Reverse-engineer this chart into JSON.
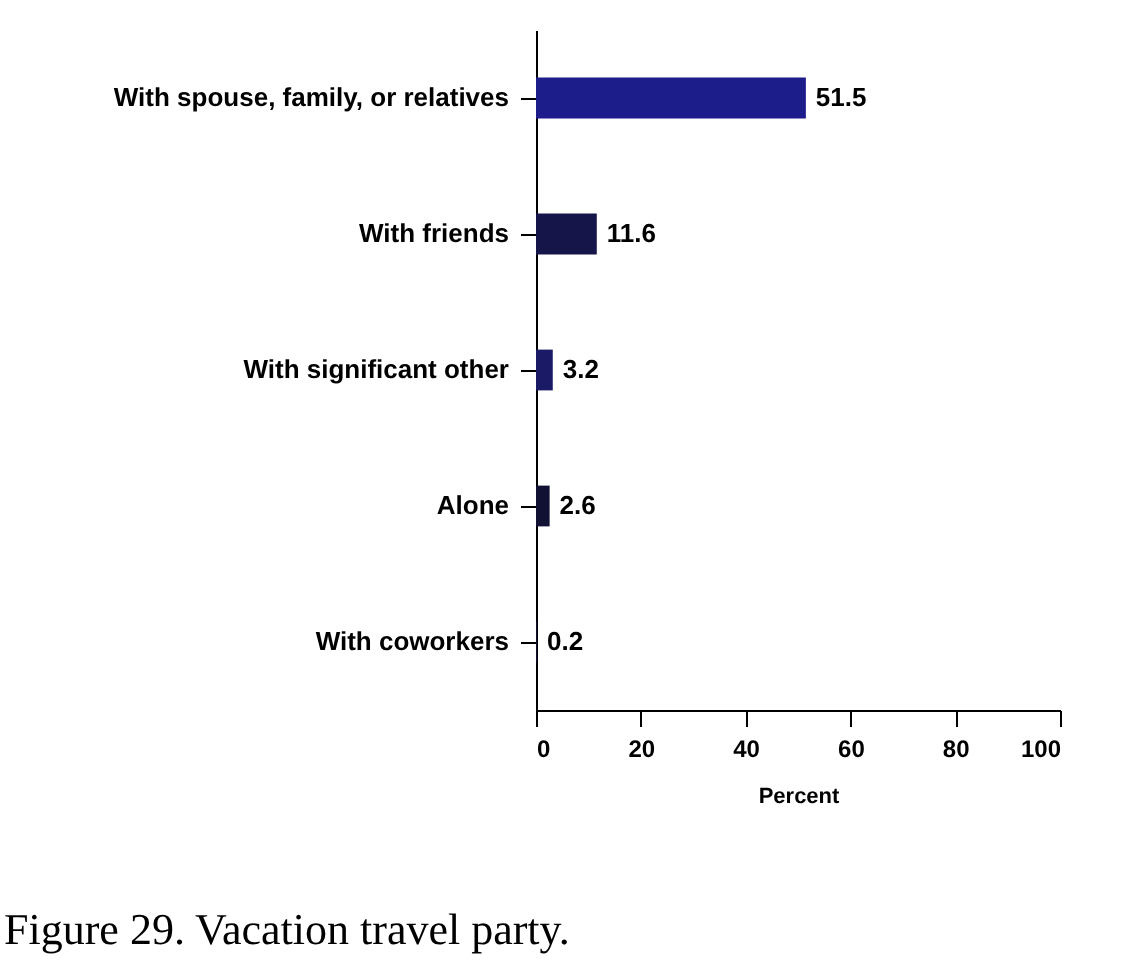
{
  "chart_data": {
    "type": "bar",
    "orientation": "horizontal",
    "title": "Figure 29. Vacation travel party.",
    "xlabel": "Percent",
    "categories": [
      "With spouse, family, or relatives",
      "With friends",
      "With significant other",
      "Alone",
      "With coworkers"
    ],
    "values": [
      51.5,
      11.6,
      3.2,
      2.6,
      0.2
    ],
    "colors": [
      "#1c1c8a",
      "#15154a",
      "#1a1a66",
      "#111133",
      "#111133"
    ],
    "xlim": [
      0,
      100
    ],
    "xticks": [
      0,
      20,
      40,
      60,
      80,
      100
    ],
    "data_labels": true,
    "grid": false
  }
}
